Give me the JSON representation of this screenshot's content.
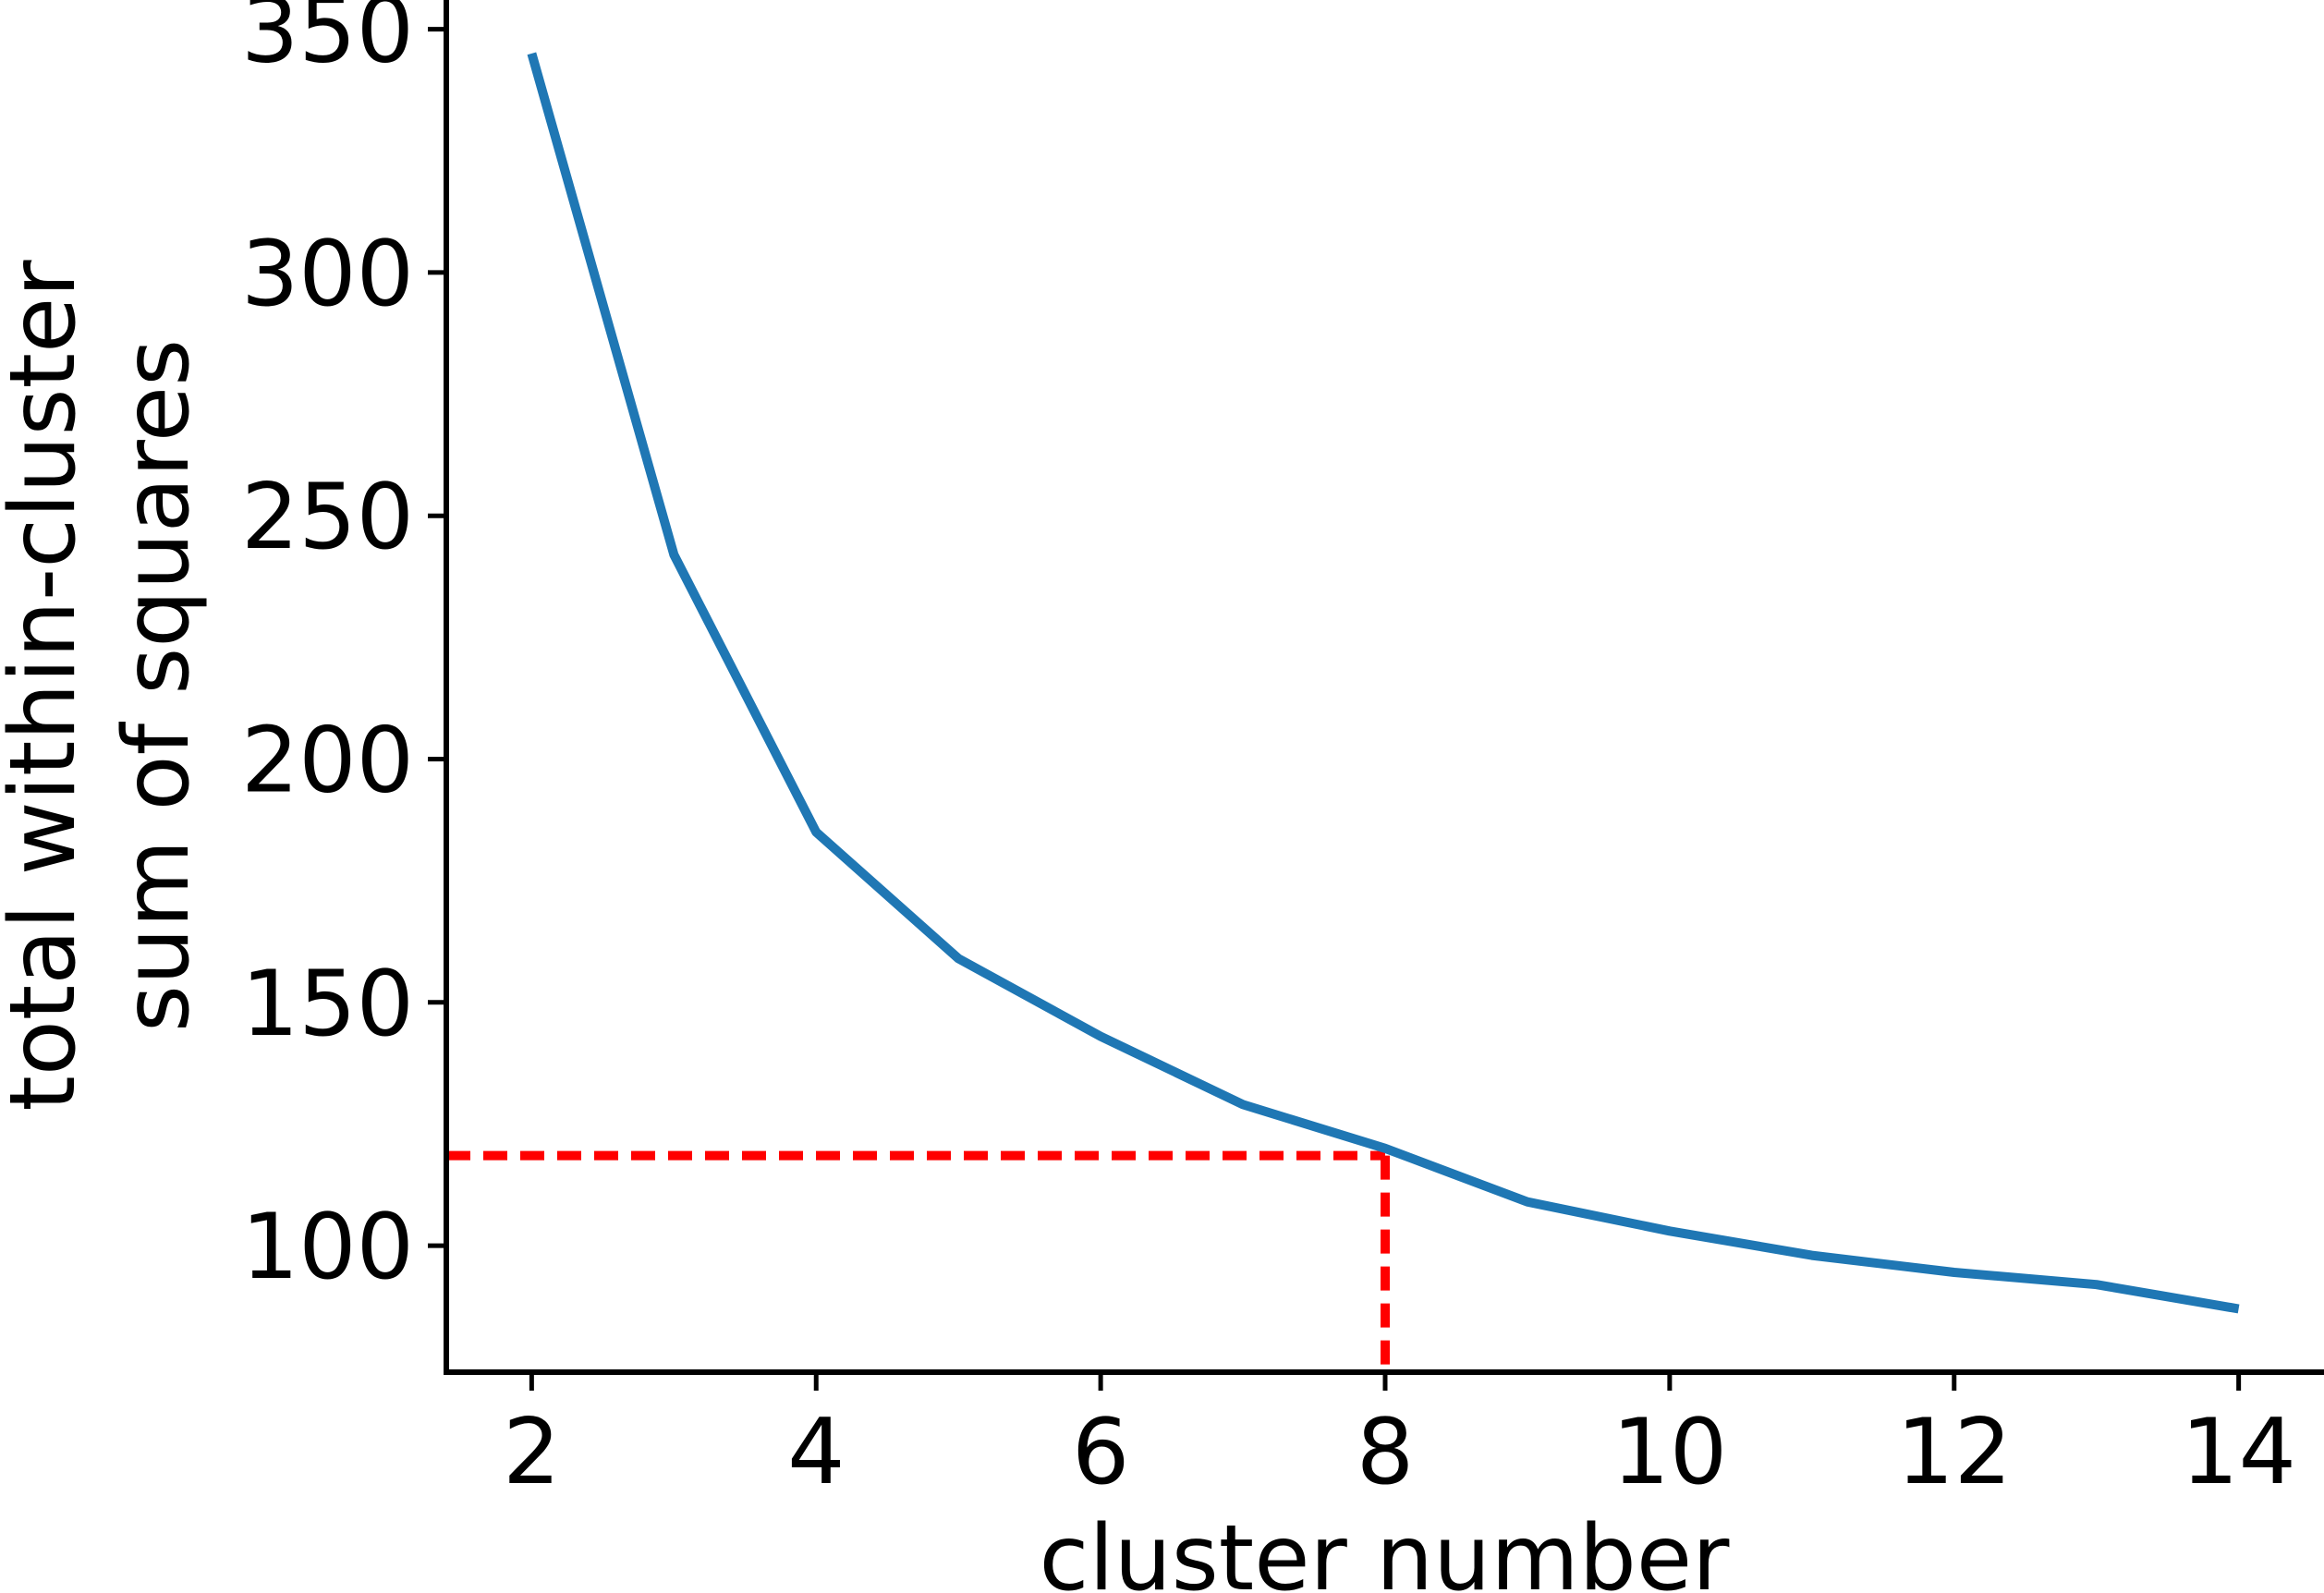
{
  "chart_data": {
    "type": "line",
    "xlabel": "cluster number",
    "ylabel_lines": [
      "total within-cluster",
      "sum of squares"
    ],
    "xlim": [
      1.4,
      14.6
    ],
    "ylim": [
      74,
      356
    ],
    "x_ticks": [
      2,
      4,
      6,
      8,
      10,
      12,
      14
    ],
    "y_ticks": [
      100,
      150,
      200,
      250,
      300,
      350
    ],
    "series": [
      {
        "color": "#1f77b4",
        "x": [
          2,
          3,
          4,
          5,
          6,
          7,
          8,
          9,
          10,
          11,
          12,
          13,
          14
        ],
        "y": [
          345,
          242,
          185,
          159,
          143,
          129,
          120,
          109,
          103,
          98,
          94.5,
          92,
          87
        ]
      }
    ],
    "annotation": {
      "color": "#ff0000",
      "style": "dashed",
      "x": 8,
      "y": 118.5
    },
    "grid": false
  }
}
